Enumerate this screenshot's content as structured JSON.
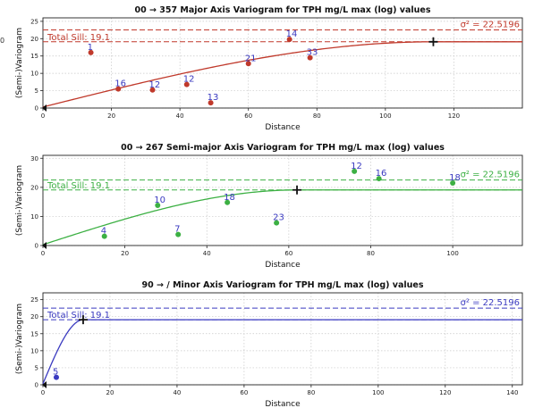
{
  "edge_text": "0",
  "chart_data": [
    {
      "type": "scatter",
      "title": "00 → 357 Major Axis Variogram for TPH mg/L max (log) values",
      "xlabel": "Distance",
      "ylabel": "(Semi-)Variogram",
      "xlim": [
        0,
        140
      ],
      "ylim": [
        0,
        26
      ],
      "xticks": [
        0,
        20,
        40,
        60,
        80,
        100,
        120
      ],
      "yticks": [
        0,
        5,
        10,
        15,
        20,
        25
      ],
      "color": "#c0392b",
      "label_color": "#3a3ac0",
      "sill": 19.1,
      "sill_label": "Total Sill: 19.1",
      "variance": 22.5196,
      "variance_label": "σ² = 22.5196",
      "range_marker": [
        114,
        19.1
      ],
      "model": {
        "nugget": 0.3,
        "sill": 19.1,
        "range": 114
      },
      "points": [
        {
          "x": 14,
          "y": 16,
          "n": "1"
        },
        {
          "x": 22,
          "y": 5.5,
          "n": "16"
        },
        {
          "x": 32,
          "y": 5.2,
          "n": "12"
        },
        {
          "x": 42,
          "y": 6.8,
          "n": "12"
        },
        {
          "x": 49,
          "y": 1.5,
          "n": "13"
        },
        {
          "x": 60,
          "y": 12.8,
          "n": "21"
        },
        {
          "x": 72,
          "y": 19.8,
          "n": "14"
        },
        {
          "x": 78,
          "y": 14.5,
          "n": "33"
        }
      ]
    },
    {
      "type": "scatter",
      "title": "00 → 267 Semi-major Axis Variogram for TPH mg/L max (log) values",
      "xlabel": "Distance",
      "ylabel": "(Semi-)Variogram",
      "xlim": [
        0,
        117
      ],
      "ylim": [
        0,
        31
      ],
      "xticks": [
        0,
        20,
        40,
        60,
        80,
        100
      ],
      "yticks": [
        0,
        10,
        20,
        30
      ],
      "color": "#3cb043",
      "label_color": "#3a3ac0",
      "sill": 19.1,
      "sill_label": "Total Sill: 19.1",
      "variance": 22.5196,
      "variance_label": "σ² = 22.5196",
      "range_marker": [
        62,
        19.1
      ],
      "model": {
        "nugget": 0.3,
        "sill": 19.1,
        "range": 62
      },
      "points": [
        {
          "x": 15,
          "y": 3.2,
          "n": "4"
        },
        {
          "x": 28,
          "y": 13.8,
          "n": "10"
        },
        {
          "x": 33,
          "y": 3.8,
          "n": "7"
        },
        {
          "x": 45,
          "y": 14.8,
          "n": "18"
        },
        {
          "x": 57,
          "y": 7.8,
          "n": "23"
        },
        {
          "x": 76,
          "y": 25.5,
          "n": "12"
        },
        {
          "x": 82,
          "y": 23,
          "n": "16"
        },
        {
          "x": 100,
          "y": 21.5,
          "n": "18"
        }
      ]
    },
    {
      "type": "scatter",
      "title": "90 → / Minor Axis Variogram for TPH mg/L max (log) values",
      "xlabel": "Distance",
      "ylabel": "(Semi-)Variogram",
      "xlim": [
        0,
        143
      ],
      "ylim": [
        0,
        27
      ],
      "xticks": [
        0,
        20,
        40,
        60,
        80,
        100,
        120,
        140
      ],
      "yticks": [
        0,
        5,
        10,
        15,
        20,
        25
      ],
      "color": "#3a3ac0",
      "label_color": "#3a3ac0",
      "sill": 19.1,
      "sill_label": "Total Sill: 19.1",
      "variance": 22.5196,
      "variance_label": "σ² = 22.5196",
      "range_marker": [
        12,
        19.1
      ],
      "model": {
        "nugget": 0.3,
        "sill": 19.1,
        "range": 12
      },
      "points": [
        {
          "x": 4,
          "y": 2.2,
          "n": "5"
        }
      ]
    }
  ]
}
